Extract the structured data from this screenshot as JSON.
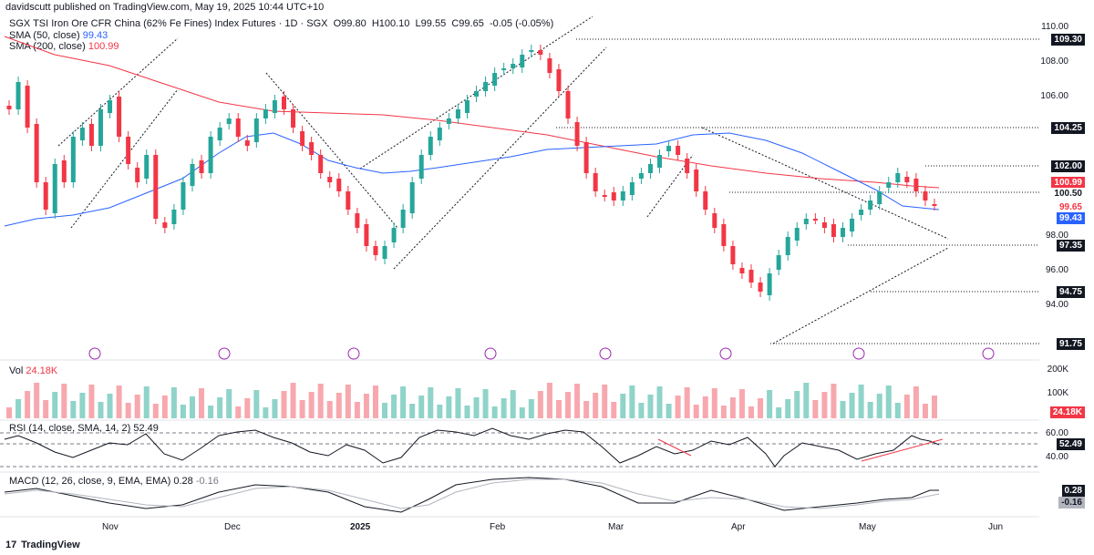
{
  "header": {
    "publisher": "davidscutt published on TradingView.com, May 19, 2025 10:44 UTC+10"
  },
  "instrument": {
    "title": "SGX TSI Iron Ore CFR China (62% Fe Fines) Index Futures · 1D · SGX",
    "open_label": "O",
    "open": "99.80",
    "high_label": "H",
    "high": "100.10",
    "low_label": "L",
    "low": "99.55",
    "close_label": "C",
    "close": "99.65",
    "change": "-0.05 (-0.05%)"
  },
  "indicators": {
    "sma50": {
      "label": "SMA (50, close)",
      "value": "99.43",
      "color": "#2962ff"
    },
    "sma200": {
      "label": "SMA (200, close)",
      "value": "100.99",
      "color": "#f23645"
    },
    "vol": {
      "label": "Vol",
      "value": "24.18K",
      "ticks": [
        "200K",
        "100K"
      ],
      "tag": "24.18K"
    },
    "rsi": {
      "label": "RSI (14, close, SMA, 14, 2)",
      "value": "52.49",
      "ticks": [
        "60.00",
        "40.00"
      ],
      "tag": "52.49"
    },
    "macd": {
      "label": "MACD (12, 26, close, 9, EMA, EMA)",
      "value": "0.28",
      "value2": "-0.16",
      "tag1": "0.28",
      "tag2": "-0.16"
    }
  },
  "price_axis": {
    "ticks": [
      "110.00",
      "108.00",
      "106.00",
      "98.00",
      "96.00",
      "94.00"
    ],
    "tags": {
      "l10930": "109.30",
      "l10425": "104.25",
      "l10200": "102.00",
      "l10099": "100.99",
      "l10050": "100.50",
      "l9965": "99.65",
      "l9943": "99.43",
      "l9735": "97.35",
      "l9475": "94.75",
      "l9175": "91.75"
    }
  },
  "time_axis": [
    "Nov",
    "Dec",
    "2025",
    "Feb",
    "Mar",
    "Apr",
    "May",
    "Jun"
  ],
  "footer": {
    "brand": "TradingView"
  },
  "colors": {
    "up": "#26a69a",
    "down": "#f23645",
    "vol_up": "#8fd3c9",
    "vol_down": "#f7a8ae",
    "ma50": "#2962ff",
    "ma200": "#f23645"
  },
  "chart_data": {
    "type": "candlestick",
    "title": "SGX TSI Iron Ore CFR China (62% Fe Fines) Index Futures · 1D · SGX",
    "y_range": [
      91,
      111
    ],
    "horizontal_levels": [
      109.3,
      104.25,
      102.0,
      100.5,
      97.35,
      94.75,
      91.75
    ],
    "last_close": 99.65,
    "sma50_last": 99.43,
    "sma200_last": 100.99
  }
}
